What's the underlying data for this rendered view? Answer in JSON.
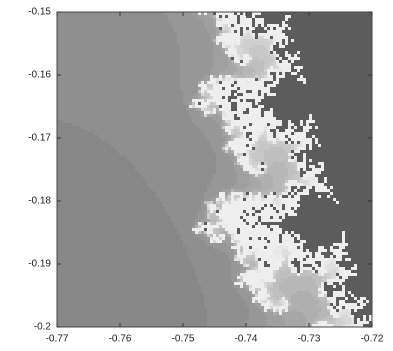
{
  "chart_data": {
    "type": "fractal",
    "xlim": [
      -0.77,
      -0.72
    ],
    "ylim": [
      -0.2,
      -0.15
    ],
    "xticks": [
      -0.77,
      -0.76,
      -0.75,
      -0.74,
      -0.73,
      -0.72
    ],
    "yticks": [
      -0.2,
      -0.19,
      -0.18,
      -0.17,
      -0.16,
      -0.15
    ]
  }
}
